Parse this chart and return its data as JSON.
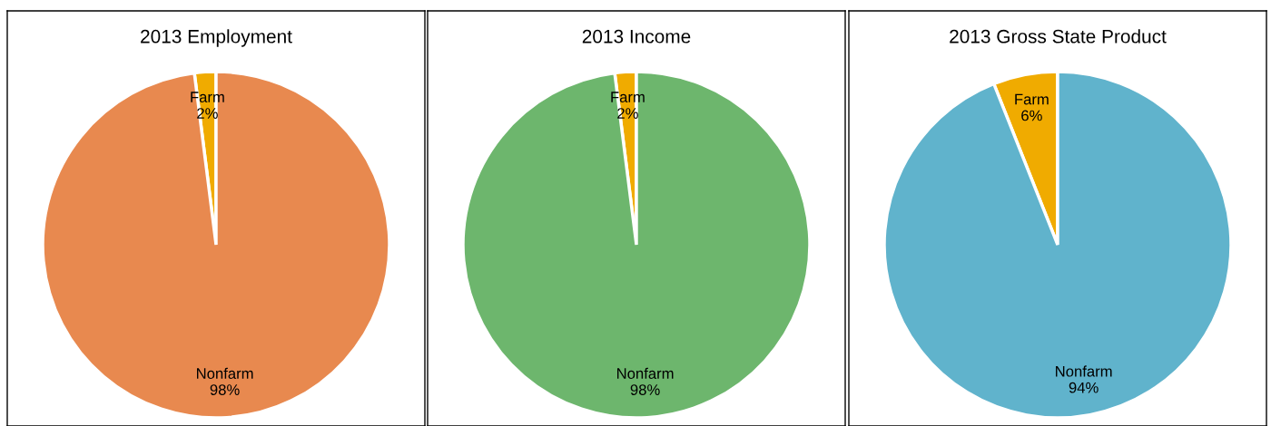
{
  "chart_data": [
    {
      "type": "pie",
      "title": "2013 Employment",
      "categories": [
        "Farm",
        "Nonfarm"
      ],
      "values": [
        2,
        98
      ],
      "value_labels": [
        "2%",
        "98%"
      ],
      "colors": [
        "#f0ab00",
        "#e8894f"
      ]
    },
    {
      "type": "pie",
      "title": "2013 Income",
      "categories": [
        "Farm",
        "Nonfarm"
      ],
      "values": [
        2,
        98
      ],
      "value_labels": [
        "2%",
        "98%"
      ],
      "colors": [
        "#f0ab00",
        "#6db66d"
      ]
    },
    {
      "type": "pie",
      "title": "2013 Gross State Product",
      "categories": [
        "Farm",
        "Nonfarm"
      ],
      "values": [
        6,
        94
      ],
      "value_labels": [
        "6%",
        "94%"
      ],
      "colors": [
        "#f0ab00",
        "#60b3cc"
      ]
    }
  ]
}
